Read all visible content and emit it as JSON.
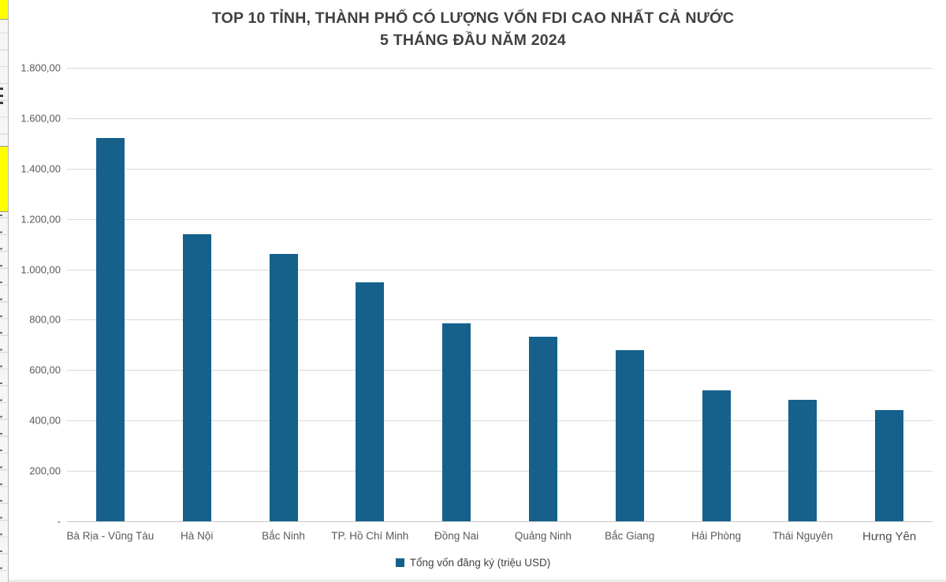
{
  "chart": {
    "title_line1": "TOP 10 TỈNH, THÀNH PHỐ CÓ LƯỢNG VỐN FDI CAO NHẤT CẢ NƯỚC",
    "title_line2": "5 THÁNG ĐẦU NĂM 2024",
    "legend_label": "Tổng vốn đăng ký (triệu USD)",
    "colors": {
      "bar": "#15618c",
      "gridline": "#d9d9d9",
      "axis_text": "#595959",
      "title_text": "#404040",
      "highlight_yellow": "#ffff00"
    }
  },
  "chart_data": {
    "type": "bar",
    "title": "TOP 10 TỈNH, THÀNH PHỐ CÓ LƯỢNG VỐN FDI CAO NHẤT CẢ NƯỚC — 5 THÁNG ĐẦU NĂM 2024",
    "categories": [
      "Bà Rịa - Vũng Tàu",
      "Hà Nội",
      "Bắc Ninh",
      "TP. Hồ Chí Minh",
      "Đồng Nai",
      "Quảng Ninh",
      "Bắc Giang",
      "Hải Phòng",
      "Thái Nguyên",
      "Hưng Yên"
    ],
    "series": [
      {
        "name": "Tổng vốn đăng ký (triệu USD)",
        "values": [
          1520,
          1138,
          1060,
          948,
          786,
          734,
          680,
          521,
          481,
          443
        ]
      }
    ],
    "xlabel": "",
    "ylabel": "",
    "ylim": [
      0,
      1800
    ],
    "ytick_values": [
      1800,
      1600,
      1400,
      1200,
      1000,
      800,
      600,
      400,
      200,
      0
    ],
    "ytick_labels": [
      "1.800,00",
      "1.600,00",
      "1.400,00",
      "1.200,00",
      "1.000,00",
      "800,00",
      "600,00",
      "400,00",
      "200,00",
      "-"
    ],
    "grid": true,
    "legend_position": "bottom"
  }
}
